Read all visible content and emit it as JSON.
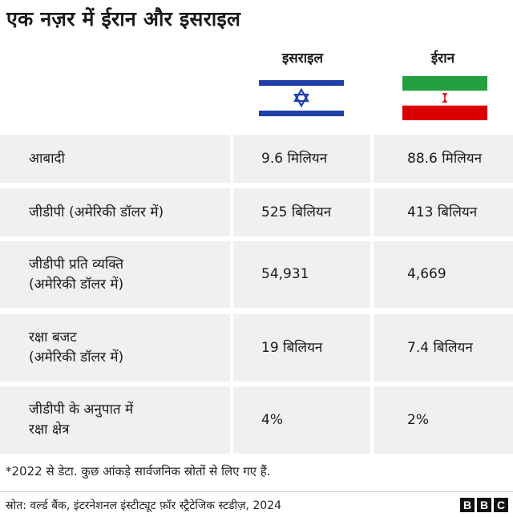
{
  "title": "एक नज़र में ईरान और इसराइल",
  "columns": {
    "israel": "इसराइल",
    "iran": "ईरान"
  },
  "flags": {
    "israel": {
      "icon": "israel-flag",
      "blue": "#1f3fa8",
      "white": "#ffffff"
    },
    "iran": {
      "icon": "iran-flag",
      "green": "#239f40",
      "white": "#ffffff",
      "red": "#da0000"
    }
  },
  "rows": [
    {
      "label": "आबादी",
      "israel": "9.6 मिलियन",
      "iran": "88.6 मिलियन"
    },
    {
      "label": "जीडीपी (अमेरिकी डॉलर में)",
      "israel": "525 बिलियन",
      "iran": "413 बिलियन"
    },
    {
      "label": "जीडीपी प्रति व्यक्ति\n(अमेरिकी डॉलर में)",
      "israel": "54,931",
      "iran": "4,669"
    },
    {
      "label": "रक्षा बजट\n(अमेरिकी डॉलर में)",
      "israel": "19 बिलियन",
      "iran": "7.4 बिलियन"
    },
    {
      "label": "जीडीपी के अनुपात में\nरक्षा क्षेत्र",
      "israel": "4%",
      "iran": "2%"
    }
  ],
  "footnote": "*2022 से डेटा. कुछ आंकड़े सार्वजनिक स्रोतों से लिए गए हैं.",
  "source": "स्रोत: वर्ल्ड बैंक, इंटरनेशनल इंस्टीट्यूट फ़ॉर स्ट्रैटेजिक स्टडीज़, 2024",
  "logo": [
    "B",
    "B",
    "C"
  ]
}
